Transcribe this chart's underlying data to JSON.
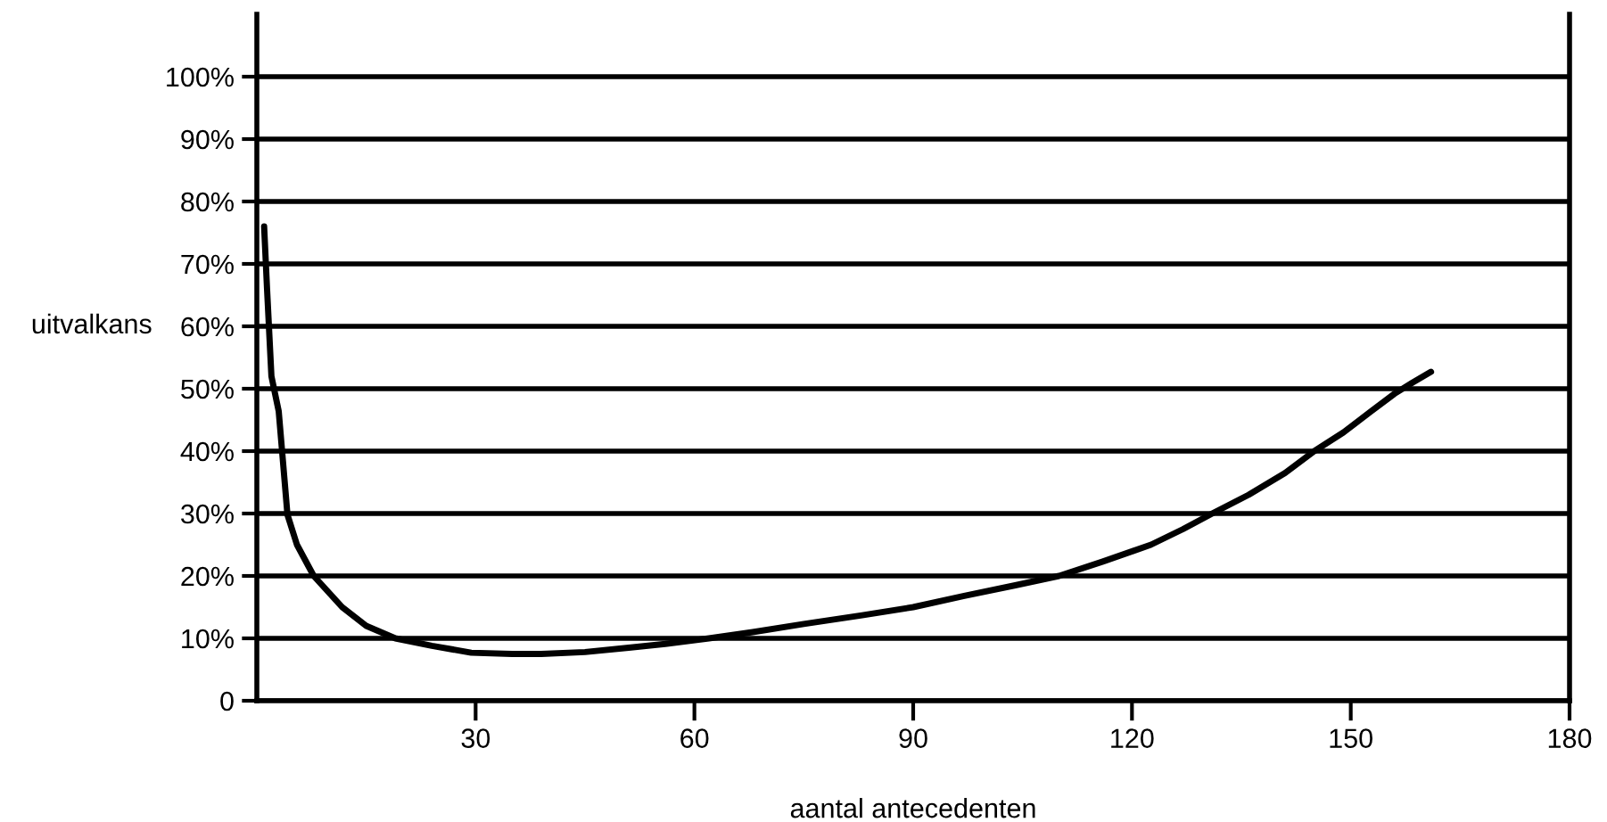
{
  "chart_data": {
    "type": "line",
    "xlabel": "aantal antecedenten",
    "ylabel": "uitvalkans",
    "xlim": [
      0,
      180
    ],
    "ylim": [
      0,
      110
    ],
    "xticks": [
      30,
      60,
      90,
      120,
      150,
      180
    ],
    "yticks": [
      0,
      {
        "value": 10,
        "label": "10%"
      },
      {
        "value": 20,
        "label": "20%"
      },
      {
        "value": 30,
        "label": "30%"
      },
      {
        "value": 40,
        "label": "40%"
      },
      {
        "value": 50,
        "label": "50%"
      },
      {
        "value": 60,
        "label": "60%"
      },
      {
        "value": 70,
        "label": "70%"
      },
      {
        "value": 80,
        "label": "80%"
      },
      {
        "value": 90,
        "label": "90%"
      },
      {
        "value": 100,
        "label": "100%"
      }
    ],
    "grid": "y",
    "marker": "none",
    "line_style": "solid",
    "series": [
      {
        "color": "#000000",
        "x": [
          1,
          1.4,
          2,
          3,
          4.2,
          5.5,
          7.8,
          11.7,
          15,
          19,
          24,
          29.4,
          35,
          39,
          45,
          51,
          56,
          62,
          68,
          75,
          83,
          90,
          97,
          104,
          110,
          116,
          122.6,
          127,
          131,
          136,
          141,
          145,
          149,
          152.8,
          156,
          158.5,
          161
        ],
        "values": [
          76,
          66,
          52,
          46.4,
          29.8,
          25,
          20,
          15,
          12,
          10,
          8.8,
          7.7,
          7.5,
          7.5,
          7.8,
          8.5,
          9.1,
          10,
          11,
          12.3,
          13.7,
          15,
          16.8,
          18.5,
          20,
          22.3,
          25,
          27.5,
          30,
          33,
          36.5,
          40,
          43,
          46.4,
          49.2,
          51,
          52.7
        ]
      }
    ]
  }
}
